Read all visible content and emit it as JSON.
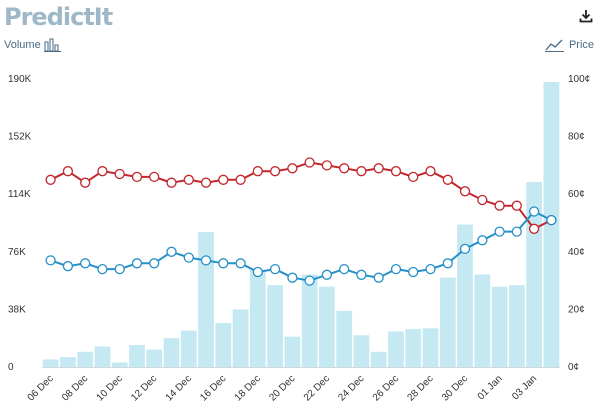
{
  "header": {
    "logo_text": "PredictIt"
  },
  "legend": {
    "volume_label": "Volume",
    "price_label": "Price"
  },
  "icons": {
    "download": "download-icon",
    "volume": "bar-chart-icon",
    "price": "line-chart-icon"
  },
  "colors": {
    "bars": "#c4e9f2",
    "red_series": "#c1272d",
    "blue_series": "#2590c8",
    "logo": "#9fb8c8"
  },
  "chart_data": {
    "type": "bar",
    "categories": [
      "06 Dec",
      "07 Dec",
      "08 Dec",
      "09 Dec",
      "10 Dec",
      "11 Dec",
      "12 Dec",
      "13 Dec",
      "14 Dec",
      "15 Dec",
      "16 Dec",
      "17 Dec",
      "18 Dec",
      "19 Dec",
      "20 Dec",
      "21 Dec",
      "22 Dec",
      "23 Dec",
      "24 Dec",
      "25 Dec",
      "26 Dec",
      "27 Dec",
      "28 Dec",
      "29 Dec",
      "30 Dec",
      "31 Dec",
      "01 Jan",
      "02 Jan",
      "03 Jan",
      "04 Jan"
    ],
    "x_tick_labels": [
      "06 Dec",
      "08 Dec",
      "10 Dec",
      "12 Dec",
      "14 Dec",
      "16 Dec",
      "18 Dec",
      "20 Dec",
      "22 Dec",
      "24 Dec",
      "26 Dec",
      "28 Dec",
      "30 Dec",
      "01 Jan",
      "03 Jan"
    ],
    "left_axis": {
      "ticks": [
        "0",
        "38K",
        "76K",
        "114K",
        "152K",
        "190K"
      ],
      "min": 0,
      "max": 190000
    },
    "right_axis": {
      "ticks": [
        "0¢",
        "20¢",
        "40¢",
        "60¢",
        "80¢",
        "100¢"
      ],
      "min": 0,
      "max": 100
    },
    "volume": [
      5000,
      6500,
      10000,
      13500,
      3000,
      14500,
      11500,
      19000,
      24000,
      89000,
      29000,
      38000,
      64000,
      54000,
      20000,
      61000,
      53000,
      37000,
      21000,
      10000,
      23500,
      25000,
      25500,
      59000,
      94000,
      61000,
      53000,
      54000,
      122000,
      188000
    ],
    "series": [
      {
        "color": "red",
        "values": [
          65,
          68,
          64,
          68,
          67,
          66,
          66,
          64,
          65,
          64,
          65,
          65,
          68,
          68,
          69,
          71,
          70,
          69,
          68,
          69,
          68,
          66,
          68,
          65,
          61,
          58,
          56,
          56,
          48,
          51
        ]
      },
      {
        "color": "blue",
        "values": [
          37,
          35,
          36,
          34,
          34,
          36,
          36,
          40,
          38,
          37,
          36,
          36,
          33,
          34,
          31,
          30,
          32,
          34,
          32,
          31,
          34,
          33,
          34,
          36,
          41,
          44,
          47,
          47,
          54,
          51
        ]
      }
    ]
  }
}
